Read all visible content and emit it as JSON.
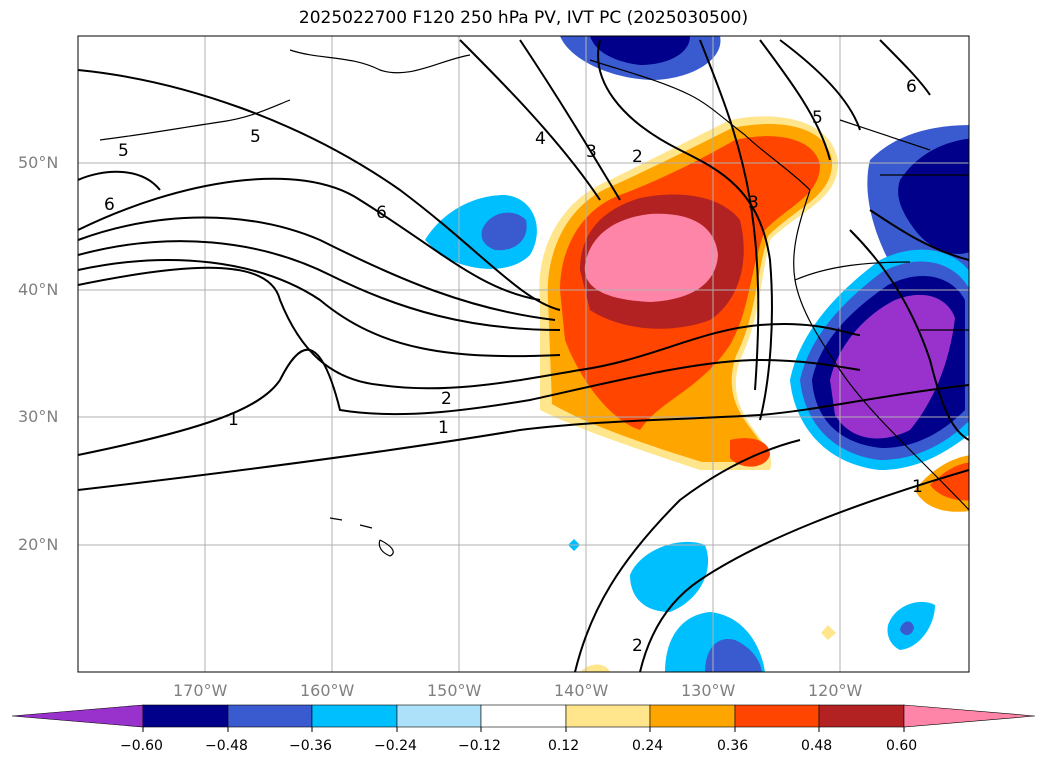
{
  "title": "2025022700 F120 250 hPa PV, IVT PC (2025030500)",
  "map": {
    "lon_labels": [
      "170°W",
      "160°W",
      "150°W",
      "140°W",
      "130°W",
      "120°W"
    ],
    "lat_labels": [
      "50°N",
      "40°N",
      "30°N",
      "20°N"
    ],
    "pv_contour_labels": [
      "5",
      "5",
      "6",
      "6",
      "4",
      "3",
      "2",
      "2",
      "1",
      "1",
      "3",
      "2",
      "6",
      "5",
      "1"
    ]
  },
  "colorbar": {
    "ticks": [
      "−0.60",
      "−0.48",
      "−0.36",
      "−0.24",
      "−0.12",
      "0.12",
      "0.24",
      "0.36",
      "0.48",
      "0.60"
    ],
    "colors": [
      "#9932CC",
      "#00008B",
      "#3A5BCF",
      "#00BFFF",
      "#ADE1FA",
      "#FFFFFF",
      "#FFE68C",
      "#FFA500",
      "#FF4500",
      "#B22222",
      "#FF85A8"
    ]
  }
}
